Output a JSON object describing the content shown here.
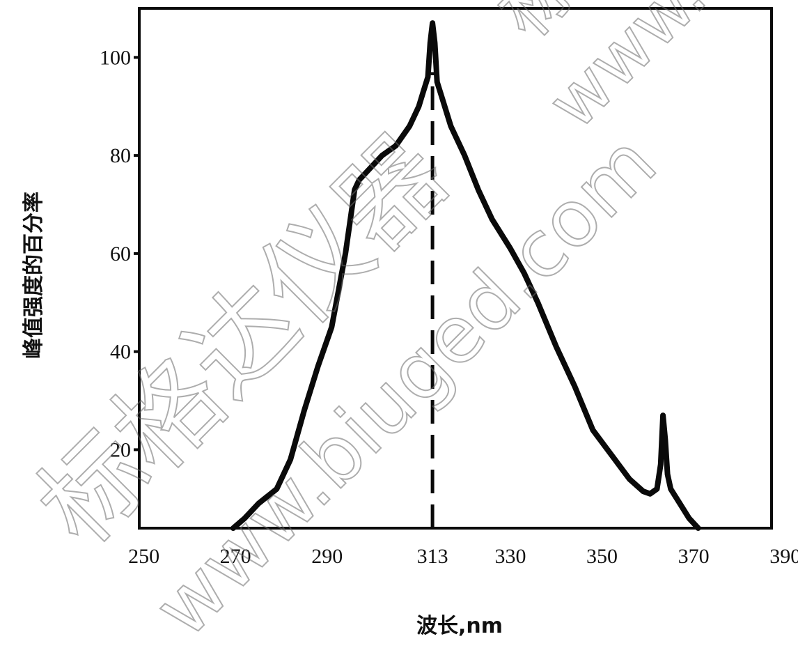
{
  "chart_data": {
    "type": "line",
    "xlabel": "波长,nm",
    "ylabel": "峰值强度的百分率",
    "x_ticks": [
      250,
      270,
      290,
      313,
      330,
      350,
      370,
      390
    ],
    "y_ticks": [
      20,
      40,
      60,
      80,
      100
    ],
    "xlim": [
      249,
      387
    ],
    "ylim": [
      4,
      110
    ],
    "grid": false,
    "legend": "none",
    "series": [
      {
        "x": [
          269.5,
          272,
          275,
          279,
          282,
          285,
          288,
          291,
          294,
          296,
          297,
          299,
          302,
          305,
          308,
          310,
          311,
          312,
          312.5,
          313,
          313.5,
          314,
          315,
          317,
          320,
          323,
          326,
          330,
          333,
          336,
          340,
          344,
          348,
          352,
          356,
          359,
          360.5,
          362,
          362.8,
          363.3,
          363.8,
          364.3,
          365,
          367,
          369,
          371
        ],
        "y": [
          4,
          6,
          9,
          12,
          18,
          28,
          37,
          45,
          60,
          73,
          75,
          77,
          80,
          82,
          86,
          90,
          93,
          96,
          103,
          107,
          103,
          95,
          92,
          86,
          80,
          73,
          67,
          61,
          56,
          50,
          41,
          33,
          24,
          19,
          14,
          11.5,
          11,
          12,
          17,
          27,
          22,
          15,
          12,
          9,
          6,
          4
        ],
        "color": "#0a0a0a"
      }
    ],
    "reference_lines": [
      {
        "axis": "x",
        "value": 313,
        "style": "dashed"
      }
    ]
  },
  "watermarks": [
    "标格达仪器",
    "www.biuged.com",
    "标",
    "www.b"
  ]
}
